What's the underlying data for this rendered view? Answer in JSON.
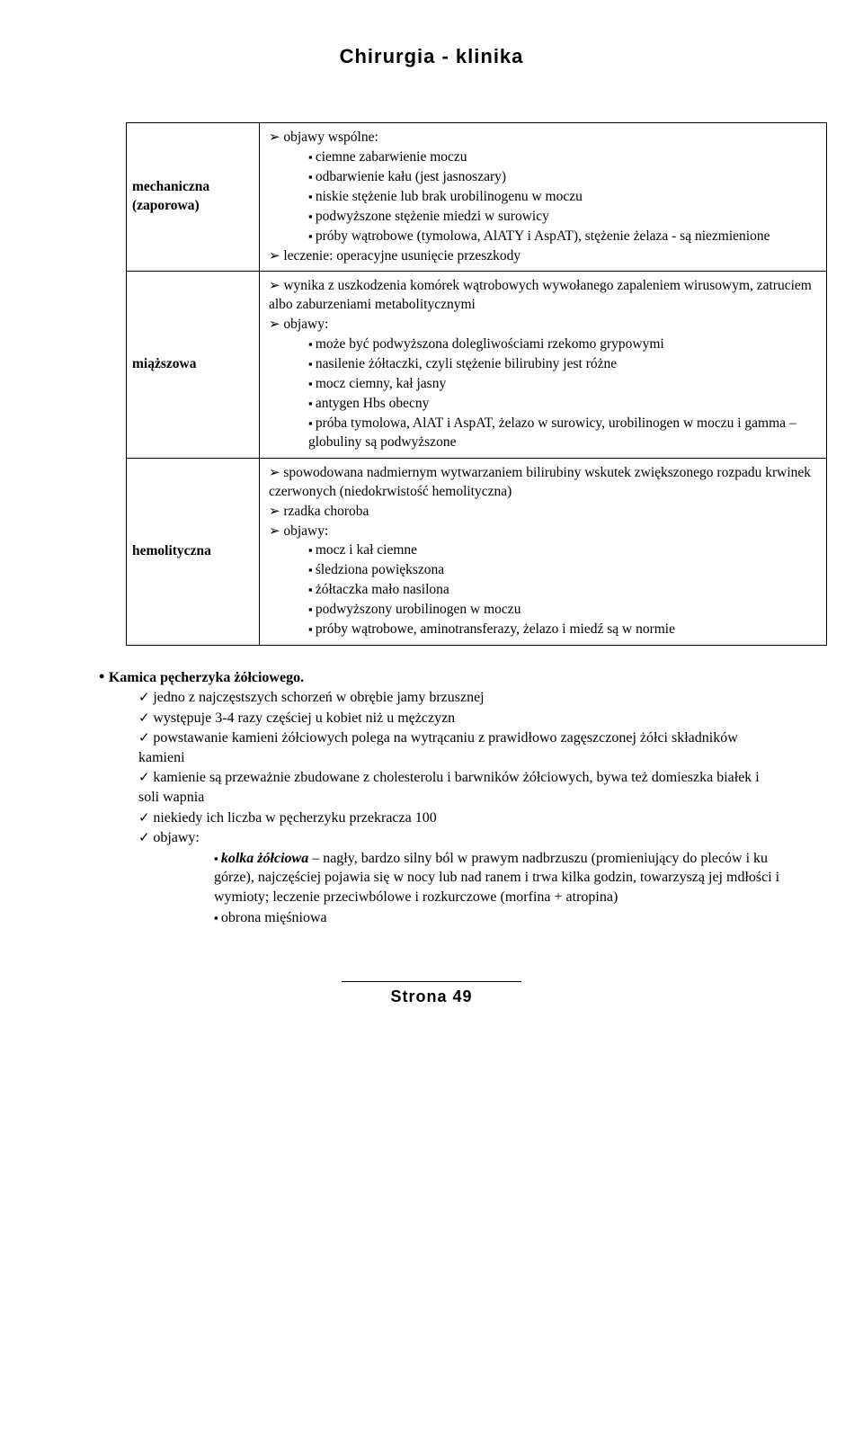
{
  "header": "Chirurgia - klinika",
  "footer": "Strona 49",
  "table": {
    "rows": [
      {
        "label": "mechaniczna (zaporowa)",
        "arrows": [
          {
            "text": "objawy wspólne:",
            "squares": [
              "ciemne zabarwienie moczu",
              "odbarwienie kału (jest jasnoszary)",
              "niskie stężenie lub brak urobilinogenu w moczu",
              "podwyższone stężenie miedzi w surowicy",
              "próby wątrobowe (tymolowa, AlATY i AspAT), stężenie żelaza - są niezmienione"
            ]
          },
          {
            "text": "leczenie: operacyjne usunięcie przeszkody"
          }
        ]
      },
      {
        "label": "miąższowa",
        "arrows": [
          {
            "text": "wynika z uszkodzenia komórek wątrobowych wywołanego zapaleniem wirusowym, zatruciem albo zaburzeniami metabolitycznymi"
          },
          {
            "text": "objawy:",
            "squares": [
              "może być podwyższona dolegliwościami rzekomo grypowymi",
              "nasilenie żółtaczki, czyli stężenie bilirubiny jest różne",
              "mocz ciemny, kał jasny",
              "antygen Hbs obecny",
              "próba tymolowa, AlAT i AspAT, żelazo w surowicy, urobilinogen w moczu i gamma – globuliny są podwyższone"
            ]
          }
        ]
      },
      {
        "label": "hemolityczna",
        "arrows": [
          {
            "text": "spowodowana nadmiernym wytwarzaniem bilirubiny wskutek zwiększonego rozpadu krwinek czerwonych (niedokrwistość hemolityczna)"
          },
          {
            "text": "rzadka choroba"
          },
          {
            "text": "objawy:",
            "squares": [
              "mocz i kał ciemne",
              "śledziona powiększona",
              "żółtaczka mało nasilona",
              "podwyższony urobilinogen w moczu",
              "próby wątrobowe, aminotransferazy, żelazo i miedź są w normie"
            ]
          }
        ]
      }
    ]
  },
  "section": {
    "title": "Kamica pęcherzyka żółciowego.",
    "checks": [
      {
        "text": "jedno z najczęstszych schorzeń w obrębie jamy brzusznej"
      },
      {
        "text": "występuje 3-4 razy częściej u kobiet niż u mężczyzn"
      },
      {
        "text": "powstawanie kamieni żółciowych polega na wytrącaniu z prawidłowo zagęszczonej żółci składników kamieni"
      },
      {
        "text": "kamienie są przeważnie zbudowane z cholesterolu i barwników żółciowych, bywa też domieszka białek i soli wapnia"
      },
      {
        "text": "niekiedy ich liczba w pęcherzyku przekracza 100"
      },
      {
        "text": "objawy:",
        "squares": [
          {
            "lead": "kolka żółciowa",
            "rest": " – nagły, bardzo silny ból w prawym nadbrzuszu (promieniujący do pleców i ku górze), najczęściej pojawia się w nocy lub nad ranem i trwa kilka godzin, towarzyszą jej mdłości i wymioty; leczenie przeciwbólowe i rozkurczowe (morfina + atropina)"
          },
          {
            "rest": "obrona mięśniowa"
          }
        ]
      }
    ]
  }
}
